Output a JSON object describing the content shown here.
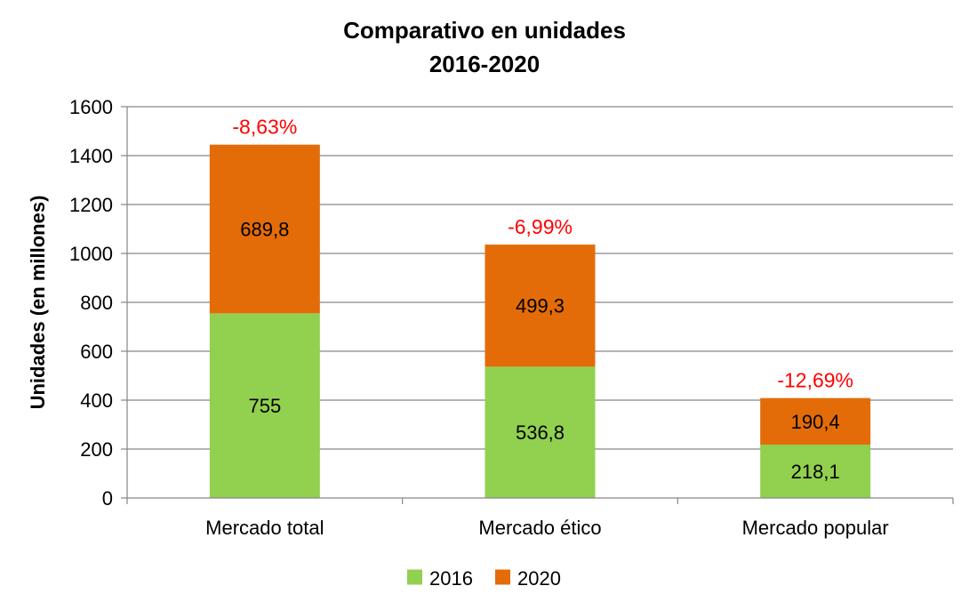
{
  "chart_data": {
    "type": "bar",
    "stacked": true,
    "title": [
      "Comparativo en unidades",
      "2016-2020"
    ],
    "xlabel": "",
    "ylabel": "Unidades (en millones)",
    "ylim": [
      0,
      1600
    ],
    "yticks": [
      0,
      200,
      400,
      600,
      800,
      1000,
      1200,
      1400,
      1600
    ],
    "grid": true,
    "legend_position": "bottom",
    "categories": [
      "Mercado total",
      "Mercado ético",
      "Mercado popular"
    ],
    "series": [
      {
        "name": "2016",
        "color": "#92d050",
        "values": [
          755,
          536.8,
          218.1
        ],
        "labels": [
          "755",
          "536,8",
          "218,1"
        ]
      },
      {
        "name": "2020",
        "color": "#e36c09",
        "values": [
          689.8,
          499.3,
          190.4
        ],
        "labels": [
          "689,8",
          "499,3",
          "190,4"
        ]
      }
    ],
    "annotations": [
      "-8,63%",
      "-6,99%",
      "-12,69%"
    ],
    "annotation_color": "#ff0000"
  }
}
